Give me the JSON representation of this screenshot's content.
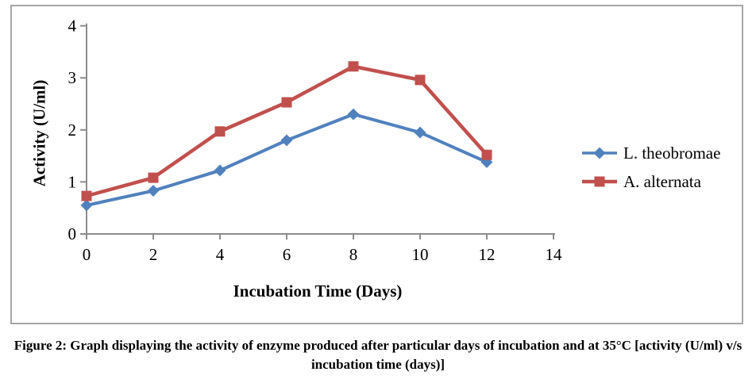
{
  "chart_data": {
    "type": "line",
    "title": "",
    "xlabel": "Incubation Time (Days)",
    "ylabel": "Activity (U/ml)",
    "x": [
      0,
      2,
      4,
      6,
      8,
      10,
      12
    ],
    "series": [
      {
        "name": "L. theobromae",
        "color": "#4F81BD",
        "marker": "diamond",
        "values": [
          0.55,
          0.83,
          1.22,
          1.8,
          2.3,
          1.95,
          1.38
        ]
      },
      {
        "name": "A. alternata",
        "color": "#C0504D",
        "marker": "square",
        "values": [
          0.73,
          1.08,
          1.97,
          2.53,
          3.22,
          2.96,
          1.52
        ]
      }
    ],
    "xlim": [
      0,
      14
    ],
    "ylim": [
      0,
      4
    ],
    "xticks": [
      0,
      2,
      4,
      6,
      8,
      10,
      12,
      14
    ],
    "yticks": [
      0,
      1,
      2,
      3,
      4
    ],
    "grid": false,
    "legend_position": "right"
  },
  "caption": {
    "text": "Figure 2: Graph displaying the activity of enzyme produced after particular days of incubation and at 35°C [activity (U/ml) v/s incubation time (days)]"
  },
  "colors": {
    "axis": "#8C8C8C",
    "frame_border": "#A6A6A6",
    "text": "#000000"
  }
}
